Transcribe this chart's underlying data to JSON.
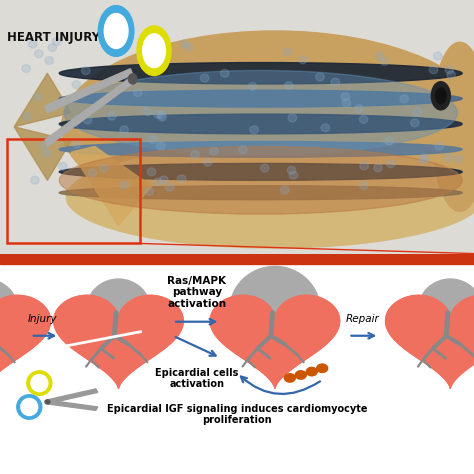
{
  "fig_width": 4.74,
  "fig_height": 4.74,
  "dpi": 100,
  "bg_color": "#ffffff",
  "heart_injury_text": "HEART INJURY",
  "heart_injury_fontsize": 8.5,
  "fish_box_color": "#dd3311",
  "zoom_line_color": "#dd3311",
  "heart_color": "#f07060",
  "epicardium_color": "#aaaaaa",
  "vessels_color": "#888888",
  "orange_cells_color": "#cc5500",
  "arrow_color": "#3366aa",
  "label_injury": "Injury",
  "label_repair": "Repair",
  "label_rasmapk": "Ras/MAPK\npathway\nactivation",
  "label_epicardial_cells": "Epicardial cells\nactivation",
  "label_igf": "Epicardial IGF signaling induces cardiomyocyte\nproliferation",
  "label_fontsize": 7.5,
  "bottom_bg": "#ffffff",
  "handle_blue": "#44aadd",
  "handle_yellow": "#dddd00",
  "blade_color": "#aaaaaa",
  "divider_color": "#cc3311"
}
